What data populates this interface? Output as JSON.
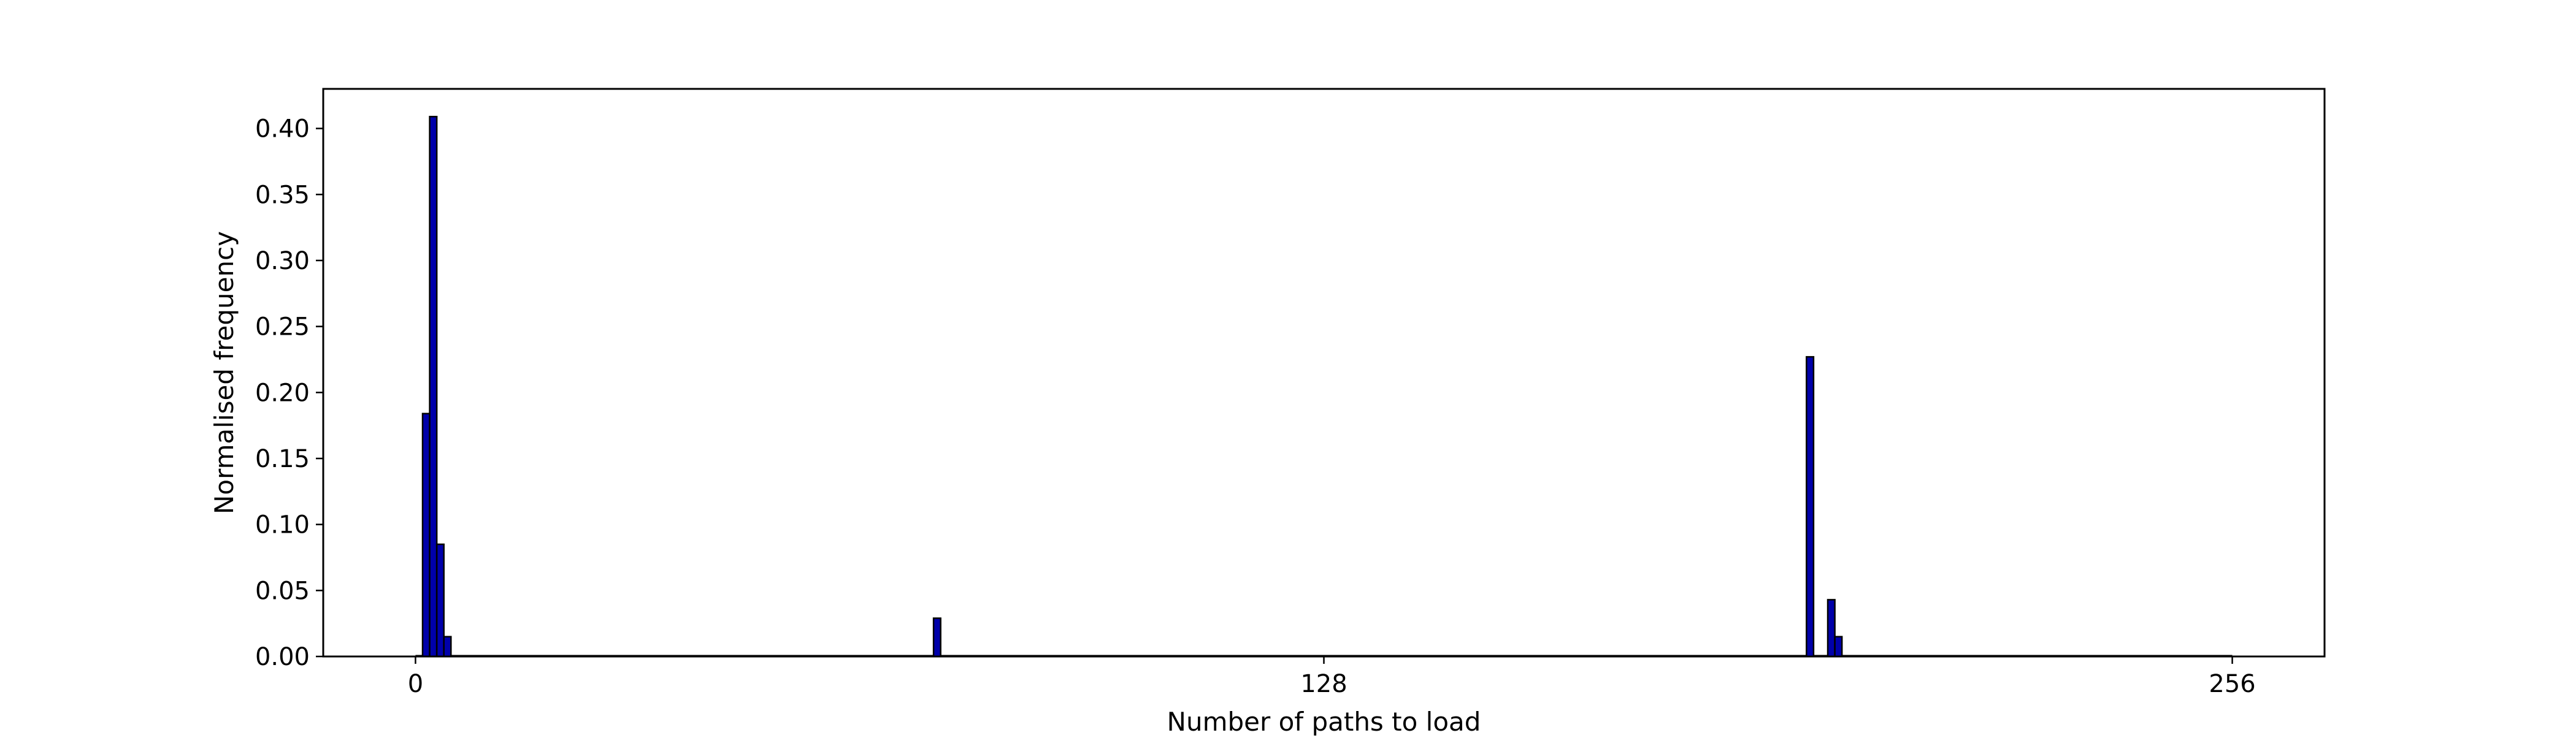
{
  "chart_data": {
    "type": "bar",
    "title": "",
    "xlabel": "Number of paths to load",
    "ylabel": "Normalised frequency",
    "xlim": [
      -13,
      269
    ],
    "ylim": [
      0,
      0.43
    ],
    "x_ticks": [
      {
        "value": 0,
        "label": "0"
      },
      {
        "value": 128,
        "label": "128"
      },
      {
        "value": 256,
        "label": "256"
      }
    ],
    "y_ticks": [
      {
        "value": 0.0,
        "label": "0.00"
      },
      {
        "value": 0.05,
        "label": "0.05"
      },
      {
        "value": 0.1,
        "label": "0.10"
      },
      {
        "value": 0.15,
        "label": "0.15"
      },
      {
        "value": 0.2,
        "label": "0.20"
      },
      {
        "value": 0.25,
        "label": "0.25"
      },
      {
        "value": 0.3,
        "label": "0.30"
      },
      {
        "value": 0.35,
        "label": "0.35"
      },
      {
        "value": 0.4,
        "label": "0.40"
      }
    ],
    "bin_start": 0,
    "bin_width": 1,
    "bins": [
      {
        "x": 0,
        "value": 0
      },
      {
        "x": 1,
        "value": 0.184
      },
      {
        "x": 2,
        "value": 0.409
      },
      {
        "x": 3,
        "value": 0.085
      },
      {
        "x": 4,
        "value": 0.015
      },
      {
        "x": 73,
        "value": 0.029
      },
      {
        "x": 196,
        "value": 0.227
      },
      {
        "x": 199,
        "value": 0.043
      },
      {
        "x": 200,
        "value": 0.015
      },
      {
        "x": 255,
        "value": 0
      }
    ],
    "bar_color": "#0000aa",
    "edge_color": "#000000",
    "grid": false,
    "legend": "none"
  }
}
